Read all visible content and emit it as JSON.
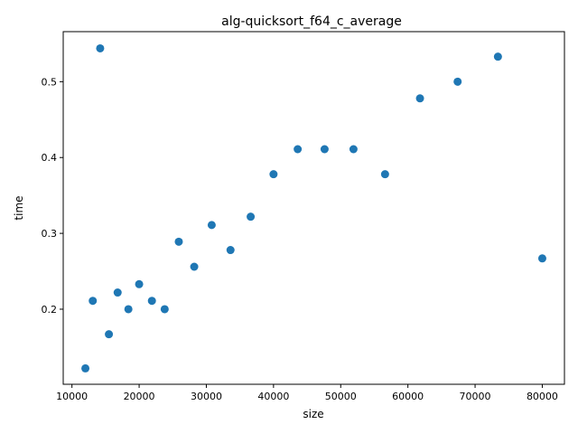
{
  "chart_data": {
    "type": "scatter",
    "title": "alg-quicksort_f64_c_average",
    "xlabel": "size",
    "ylabel": "time",
    "xlim": [
      8700,
      83300
    ],
    "ylim": [
      0.101,
      0.566
    ],
    "xticks": [
      10000,
      20000,
      30000,
      40000,
      50000,
      60000,
      70000,
      80000
    ],
    "yticks": [
      0.2,
      0.3,
      0.4,
      0.5
    ],
    "ytick_labels": [
      "0.2",
      "0.3",
      "0.4",
      "0.5"
    ],
    "grid": false,
    "marker_color": "#1f77b4",
    "series": [
      {
        "x": [
          12000,
          13100,
          14200,
          15500,
          16800,
          18400,
          20000,
          21900,
          23800,
          25900,
          28200,
          30800,
          33600,
          36600,
          40000,
          43600,
          47600,
          51900,
          56600,
          61800,
          67400,
          73400,
          80000
        ],
        "y": [
          0.122,
          0.211,
          0.544,
          0.167,
          0.222,
          0.2,
          0.233,
          0.211,
          0.2,
          0.289,
          0.256,
          0.311,
          0.278,
          0.322,
          0.378,
          0.411,
          0.411,
          0.411,
          0.378,
          0.478,
          0.5,
          0.533,
          0.267
        ]
      }
    ]
  }
}
